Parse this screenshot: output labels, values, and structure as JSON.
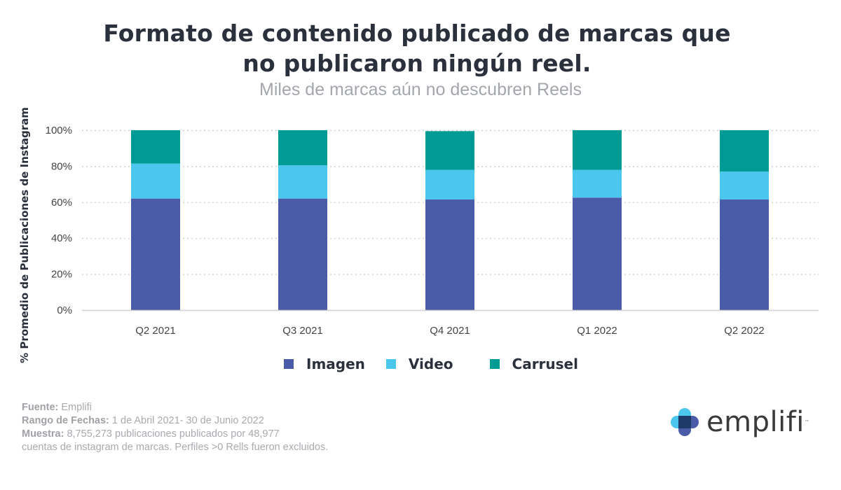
{
  "title_line1": "Formato de contenido publicado de marcas que",
  "title_line2": "no publicaron ningún reel.",
  "subtitle": "Miles de marcas aún no descubren Reels",
  "chart_data": {
    "type": "bar",
    "stacked": true,
    "title": "Formato de contenido publicado de marcas que no publicaron ningún reel.",
    "subtitle": "Miles de marcas aún no descubren Reels",
    "xlabel": "",
    "ylabel": "% Promedio de Publicaciones de Instagram",
    "categories": [
      "Q2 2021",
      "Q3 2021",
      "Q4 2021",
      "Q1 2022",
      "Q2 2022"
    ],
    "series": [
      {
        "name": "Imagen",
        "color": "#4a5ca8",
        "values": [
          62,
          62,
          61.5,
          62.5,
          61.5
        ]
      },
      {
        "name": "Video",
        "color": "#4bc6ec",
        "values": [
          19.5,
          18.5,
          16.5,
          15.5,
          15.5
        ]
      },
      {
        "name": "Carrusel",
        "color": "#009b95",
        "values": [
          18.5,
          19.5,
          21.5,
          22,
          23
        ]
      }
    ],
    "ylim": [
      0,
      100
    ],
    "yticks": [
      "0%",
      "20%",
      "40%",
      "60%",
      "80%",
      "100%"
    ],
    "grid": true,
    "legend": "bottom"
  },
  "legend": [
    {
      "label": "Imagen",
      "color": "#4a5ca8"
    },
    {
      "label": "Video",
      "color": "#4bc6ec"
    },
    {
      "label": "Carrusel",
      "color": "#009b95"
    }
  ],
  "footer": {
    "source_label": "Fuente:",
    "source_value": "Emplifi",
    "range_label": "Rango de Fechas:",
    "range_value": "1 de Abril 2021- 30 de Junio 2022",
    "sample_label": "Muestra:",
    "sample_value": "8,755,273 publicaciones publicados por 48,977",
    "sample_line2": "cuentas de instagram de marcas. Perfiles >0 Rells fueron excluidos."
  },
  "logo": {
    "text": "emplifi",
    "tm": "™"
  }
}
